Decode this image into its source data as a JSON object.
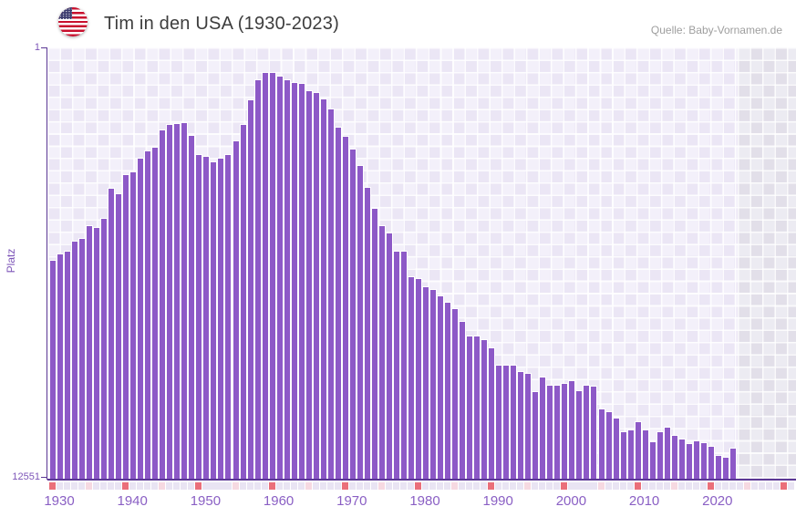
{
  "header": {
    "title": "Tim in den USA (1930-2023)",
    "source": "Quelle: Baby-Vornamen.de"
  },
  "y_axis": {
    "label": "Platz",
    "top_tick": "1",
    "bottom_tick": "12551"
  },
  "x_axis": {
    "decade_labels": [
      "1930",
      "1940",
      "1950",
      "1960",
      "1970",
      "1980",
      "1990",
      "2000",
      "2010",
      "2020"
    ],
    "tick_year_start": 1930,
    "tick_year_end": 2031
  },
  "chart_data": {
    "type": "bar",
    "title": "Tim in den USA (1930-2023)",
    "xlabel": "",
    "ylabel": "Platz",
    "ylim": [
      1,
      12551
    ],
    "y_axis_reversed": true,
    "grid": true,
    "legend_position": "none",
    "series_name": "Platz",
    "x": [
      1930,
      1931,
      1932,
      1933,
      1934,
      1935,
      1936,
      1937,
      1938,
      1939,
      1940,
      1941,
      1942,
      1943,
      1944,
      1945,
      1946,
      1947,
      1948,
      1949,
      1950,
      1951,
      1952,
      1953,
      1954,
      1955,
      1956,
      1957,
      1958,
      1959,
      1960,
      1961,
      1962,
      1963,
      1964,
      1965,
      1966,
      1967,
      1968,
      1969,
      1970,
      1971,
      1972,
      1973,
      1974,
      1975,
      1976,
      1977,
      1978,
      1979,
      1980,
      1981,
      1982,
      1983,
      1984,
      1985,
      1986,
      1987,
      1988,
      1989,
      1990,
      1991,
      1992,
      1993,
      1994,
      1995,
      1996,
      1997,
      1998,
      1999,
      2000,
      2001,
      2002,
      2003,
      2004,
      2005,
      2006,
      2007,
      2008,
      2009,
      2010,
      2011,
      2012,
      2013,
      2014,
      2015,
      2016,
      2017,
      2018,
      2019,
      2020,
      2021,
      2022,
      2023
    ],
    "values": [
      6183,
      5996,
      5916,
      5623,
      5543,
      5170,
      5223,
      4957,
      4077,
      4237,
      3678,
      3598,
      3198,
      2985,
      2905,
      2399,
      2239,
      2213,
      2186,
      2559,
      3092,
      3145,
      3305,
      3198,
      3092,
      2719,
      2239,
      1520,
      934,
      720,
      720,
      827,
      934,
      1014,
      1040,
      1253,
      1306,
      1493,
      1786,
      2319,
      2586,
      2932,
      3412,
      4051,
      4664,
      5170,
      5383,
      5916,
      5916,
      6662,
      6715,
      6955,
      7035,
      7221,
      7408,
      7594,
      7967,
      8394,
      8394,
      8500,
      8740,
      9220,
      9220,
      9220,
      9406,
      9460,
      9992,
      9566,
      9806,
      9806,
      9753,
      9673,
      9966,
      9806,
      9832,
      10499,
      10579,
      10765,
      11165,
      11112,
      10872,
      11112,
      11458,
      11165,
      11032,
      11272,
      11378,
      11511,
      11432,
      11485,
      11591,
      11857,
      11911,
      11645
    ],
    "colors": {
      "bar": "#8d59c7",
      "axis": "#5b3795",
      "x_label": "#8a5fc4",
      "y_label": "#7d55b8",
      "title": "#3d3d3d",
      "source": "#9e9e9e",
      "tick_decade": "#ea6f7a",
      "tick_half_decade": "#f6d9e1",
      "tick_regular": "#e9e4f3"
    }
  }
}
